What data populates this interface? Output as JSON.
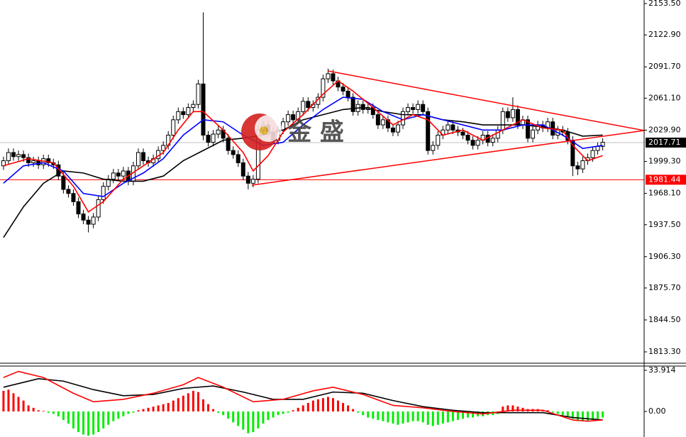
{
  "chart_data": [
    {
      "type": "candlestick",
      "watermark": "金 盛",
      "xlim": [
        -0.7,
        128.3
      ],
      "ylim": [
        1802.2,
        2157.0
      ],
      "yticks": [
        {
          "value": 2153.5,
          "label": "2153.50"
        },
        {
          "value": 2122.9,
          "label": "2122.90"
        },
        {
          "value": 2091.7,
          "label": "2091.70"
        },
        {
          "value": 2061.1,
          "label": "2061.10"
        },
        {
          "value": 2029.9,
          "label": "2029.90"
        },
        {
          "value": 1999.3,
          "label": "1999.30"
        },
        {
          "value": 1968.1,
          "label": "1968.10"
        },
        {
          "value": 1937.5,
          "label": "1937.50"
        },
        {
          "value": 1906.3,
          "label": "1906.30"
        },
        {
          "value": 1875.7,
          "label": "1875.70"
        },
        {
          "value": 1844.5,
          "label": "1844.50"
        },
        {
          "value": 1813.3,
          "label": "1813.30"
        }
      ],
      "up_color": "#ffffff",
      "down_color": "#000000",
      "wick_color": "#000000",
      "candles": [
        [
          1995,
          2004,
          1991,
          2000
        ],
        [
          2000,
          2012,
          1996,
          2008
        ],
        [
          2008,
          2012,
          2000,
          2004
        ],
        [
          2004,
          2010,
          2000,
          2006
        ],
        [
          2006,
          2010,
          1999,
          2003
        ],
        [
          2003,
          2007,
          1994,
          1998
        ],
        [
          1998,
          2004,
          1994,
          2000
        ],
        [
          2000,
          2004,
          1992,
          1996
        ],
        [
          1996,
          2006,
          1992,
          2002
        ],
        [
          2002,
          2006,
          1994,
          1998
        ],
        [
          1998,
          2002,
          1992,
          1996
        ],
        [
          1996,
          2000,
          1981,
          1985
        ],
        [
          1985,
          1989,
          1968,
          1972
        ],
        [
          1972,
          1976,
          1964,
          1968
        ],
        [
          1968,
          1972,
          1956,
          1960
        ],
        [
          1960,
          1964,
          1944,
          1948
        ],
        [
          1948,
          1952,
          1938,
          1942
        ],
        [
          1942,
          1946,
          1930,
          1938
        ],
        [
          1938,
          1949,
          1934,
          1945
        ],
        [
          1945,
          1966,
          1941,
          1962
        ],
        [
          1962,
          1979,
          1958,
          1975
        ],
        [
          1975,
          1986,
          1971,
          1982
        ],
        [
          1982,
          1992,
          1978,
          1988
        ],
        [
          1988,
          1992,
          1981,
          1985
        ],
        [
          1985,
          1994,
          1981,
          1990
        ],
        [
          1990,
          1994,
          1976,
          1980
        ],
        [
          1980,
          1999,
          1976,
          1995
        ],
        [
          1995,
          2012,
          1991,
          2008
        ],
        [
          2008,
          2012,
          1996,
          2000
        ],
        [
          2000,
          2004,
          1994,
          1998
        ],
        [
          1998,
          2006,
          1994,
          2002
        ],
        [
          2002,
          2014,
          1998,
          2010
        ],
        [
          2010,
          2019,
          2006,
          2015
        ],
        [
          2015,
          2029,
          2011,
          2025
        ],
        [
          2025,
          2044,
          2021,
          2040
        ],
        [
          2040,
          2052,
          2036,
          2048
        ],
        [
          2048,
          2052,
          2041,
          2045
        ],
        [
          2045,
          2056,
          2041,
          2052
        ],
        [
          2052,
          2059,
          2048,
          2055
        ],
        [
          2055,
          2079,
          2051,
          2075
        ],
        [
          2075,
          2145,
          2020,
          2025
        ],
        [
          2025,
          2029,
          2014,
          2018
        ],
        [
          2018,
          2030,
          2014,
          2026
        ],
        [
          2026,
          2034,
          2022,
          2030
        ],
        [
          2030,
          2034,
          2018,
          2022
        ],
        [
          2022,
          2026,
          2006,
          2010
        ],
        [
          2010,
          2014,
          2002,
          2006
        ],
        [
          2006,
          2010,
          1994,
          1998
        ],
        [
          1998,
          2002,
          1981,
          1985
        ],
        [
          1985,
          1989,
          1972,
          1978
        ],
        [
          1978,
          1986,
          1974,
          1982
        ],
        [
          1982,
          2034,
          1978,
          2030
        ],
        [
          2030,
          2039,
          2026,
          2035
        ],
        [
          2035,
          2039,
          2024,
          2028
        ],
        [
          2028,
          2032,
          2016,
          2020
        ],
        [
          2020,
          2034,
          2016,
          2030
        ],
        [
          2030,
          2042,
          2026,
          2038
        ],
        [
          2038,
          2049,
          2034,
          2045
        ],
        [
          2045,
          2049,
          2036,
          2040
        ],
        [
          2040,
          2052,
          2036,
          2048
        ],
        [
          2048,
          2062,
          2044,
          2058
        ],
        [
          2058,
          2062,
          2048,
          2052
        ],
        [
          2052,
          2059,
          2048,
          2055
        ],
        [
          2055,
          2066,
          2051,
          2062
        ],
        [
          2062,
          2084,
          2058,
          2080
        ],
        [
          2080,
          2090,
          2076,
          2085
        ],
        [
          2085,
          2089,
          2074,
          2078
        ],
        [
          2078,
          2082,
          2068,
          2072
        ],
        [
          2072,
          2076,
          2064,
          2068
        ],
        [
          2068,
          2072,
          2058,
          2062
        ],
        [
          2062,
          2066,
          2044,
          2048
        ],
        [
          2048,
          2059,
          2044,
          2055
        ],
        [
          2055,
          2059,
          2046,
          2050
        ],
        [
          2050,
          2056,
          2046,
          2052
        ],
        [
          2052,
          2056,
          2041,
          2045
        ],
        [
          2045,
          2049,
          2031,
          2035
        ],
        [
          2035,
          2044,
          2031,
          2040
        ],
        [
          2040,
          2044,
          2028,
          2032
        ],
        [
          2032,
          2036,
          2024,
          2028
        ],
        [
          2028,
          2039,
          2024,
          2035
        ],
        [
          2035,
          2052,
          2031,
          2048
        ],
        [
          2048,
          2056,
          2044,
          2052
        ],
        [
          2052,
          2056,
          2046,
          2050
        ],
        [
          2050,
          2059,
          2046,
          2055
        ],
        [
          2055,
          2059,
          2044,
          2048
        ],
        [
          2048,
          2052,
          2006,
          2010
        ],
        [
          2010,
          2019,
          2006,
          2015
        ],
        [
          2015,
          2029,
          2011,
          2025
        ],
        [
          2025,
          2034,
          2021,
          2030
        ],
        [
          2030,
          2039,
          2026,
          2035
        ],
        [
          2035,
          2039,
          2026,
          2030
        ],
        [
          2030,
          2034,
          2024,
          2028
        ],
        [
          2028,
          2032,
          2021,
          2025
        ],
        [
          2025,
          2029,
          2016,
          2020
        ],
        [
          2020,
          2024,
          2011,
          2015
        ],
        [
          2015,
          2024,
          2011,
          2020
        ],
        [
          2020,
          2029,
          2016,
          2025
        ],
        [
          2025,
          2029,
          2014,
          2018
        ],
        [
          2018,
          2026,
          2014,
          2022
        ],
        [
          2022,
          2034,
          2018,
          2030
        ],
        [
          2030,
          2052,
          2026,
          2048
        ],
        [
          2048,
          2052,
          2038,
          2042
        ],
        [
          2042,
          2062,
          2038,
          2050
        ],
        [
          2050,
          2054,
          2031,
          2035
        ],
        [
          2035,
          2044,
          2031,
          2040
        ],
        [
          2040,
          2044,
          2018,
          2022
        ],
        [
          2022,
          2034,
          2018,
          2030
        ],
        [
          2030,
          2039,
          2026,
          2035
        ],
        [
          2035,
          2039,
          2028,
          2032
        ],
        [
          2032,
          2042,
          2028,
          2038
        ],
        [
          2038,
          2042,
          2021,
          2025
        ],
        [
          2025,
          2034,
          2021,
          2030
        ],
        [
          2030,
          2034,
          2024,
          2028
        ],
        [
          2028,
          2032,
          2016,
          2020
        ],
        [
          2020,
          2024,
          1985,
          1995
        ],
        [
          1995,
          1999,
          1986,
          1992
        ],
        [
          1992,
          2004,
          1988,
          2000
        ],
        [
          2000,
          2007,
          1996,
          2003
        ],
        [
          2003,
          2014,
          1999,
          2010
        ],
        [
          2010,
          2018,
          2006,
          2014
        ],
        [
          2014,
          2022,
          2010,
          2018
        ]
      ],
      "series": [
        {
          "color": "#000000",
          "x": [
            0,
            4,
            8,
            12,
            16,
            20,
            24,
            28,
            32,
            36,
            40,
            44,
            48,
            52,
            56,
            60,
            64,
            68,
            72,
            76,
            80,
            84,
            88,
            92,
            96,
            100,
            104,
            108,
            112,
            116,
            120
          ],
          "values": [
            1925,
            1955,
            1978,
            1990,
            1988,
            1982,
            1980,
            1980,
            1985,
            2000,
            2010,
            2020,
            2022,
            2025,
            2030,
            2040,
            2045,
            2050,
            2052,
            2048,
            2045,
            2045,
            2040,
            2038,
            2035,
            2035,
            2035,
            2033,
            2030,
            2024,
            2025
          ]
        },
        {
          "color": "#0000ff",
          "x": [
            0,
            4,
            8,
            12,
            16,
            20,
            24,
            28,
            32,
            36,
            40,
            44,
            48,
            52,
            56,
            60,
            64,
            68,
            72,
            76,
            80,
            84,
            88,
            92,
            96,
            100,
            104,
            108,
            112,
            116,
            120
          ],
          "values": [
            1978,
            1995,
            1998,
            1990,
            1968,
            1965,
            1978,
            1988,
            2002,
            2025,
            2040,
            2038,
            2025,
            2015,
            2018,
            2035,
            2050,
            2062,
            2060,
            2048,
            2040,
            2045,
            2040,
            2035,
            2030,
            2030,
            2035,
            2035,
            2025,
            2012,
            2015
          ]
        },
        {
          "color": "#ff0000",
          "x": [
            0,
            5,
            10,
            14,
            17,
            20,
            24,
            28,
            32,
            35,
            38,
            40,
            44,
            48,
            50,
            53,
            56,
            60,
            64,
            67,
            70,
            74,
            78,
            82,
            85,
            88,
            92,
            96,
            100,
            104,
            108,
            112,
            114,
            117,
            120
          ],
          "values": [
            1995,
            2002,
            1998,
            1975,
            1950,
            1960,
            1982,
            1995,
            2008,
            2030,
            2048,
            2048,
            2030,
            2008,
            1990,
            2005,
            2028,
            2045,
            2065,
            2078,
            2068,
            2052,
            2035,
            2045,
            2040,
            2025,
            2030,
            2020,
            2030,
            2040,
            2032,
            2030,
            2015,
            2000,
            2005
          ]
        }
      ],
      "lines": [
        {
          "color": "#ff0000",
          "x": [
            65,
            128.3
          ],
          "y": [
            2087.7,
            2029.5
          ]
        },
        {
          "color": "#ff0000",
          "x": [
            49.7,
            128.3
          ],
          "y": [
            1976.1,
            2029.5
          ]
        }
      ],
      "hlines": [
        {
          "value": 2017.71,
          "color": "#c0c0c0",
          "label_bg": "#000000"
        },
        {
          "value": 1981.44,
          "color": "#ff0000",
          "label_bg": "#ff0000"
        }
      ]
    },
    {
      "type": "macd",
      "xlim": [
        -0.7,
        128.3
      ],
      "ylim": [
        -21.05,
        37.42
      ],
      "yticks": [
        33.914,
        {
          "value": 0,
          "label": "0.00"
        }
      ],
      "positive_color": "#ff0000",
      "negative_color": "#00ee00",
      "histogram": [
        17,
        18,
        15,
        12,
        9,
        5,
        3,
        1,
        0.5,
        -1,
        -2,
        -4,
        -7,
        -10,
        -14,
        -17,
        -19,
        -20,
        -19,
        -17,
        -14,
        -11,
        -8,
        -6,
        -4,
        -2,
        -1,
        1,
        2,
        3,
        4,
        5,
        6,
        7,
        9,
        11,
        13,
        15,
        17,
        16,
        10,
        6,
        2,
        -1,
        -3,
        -6,
        -9,
        -12,
        -15,
        -18,
        -17,
        -14,
        -10,
        -7,
        -5,
        -3,
        -2,
        -1,
        1,
        3,
        5,
        7,
        9,
        10,
        11,
        12,
        11,
        9,
        7,
        5,
        2,
        -1,
        -3,
        -5,
        -6,
        -7,
        -8,
        -9,
        -10,
        -11,
        -10,
        -9,
        -8,
        -8,
        -9,
        -11,
        -12,
        -11,
        -10,
        -9,
        -8,
        -7,
        -6,
        -5,
        -5,
        -4,
        -4,
        -3,
        -3,
        -2,
        4,
        5,
        5,
        4,
        3,
        2,
        2,
        2,
        1,
        1,
        -1,
        -2,
        -3,
        -4,
        -6,
        -8,
        -8,
        -8,
        -7,
        -6,
        -5
      ],
      "series": [
        {
          "color": "#000000",
          "x": [
            0,
            7,
            12,
            18,
            24,
            30,
            36,
            42,
            48,
            54,
            60,
            66,
            72,
            78,
            84,
            90,
            96,
            102,
            108,
            114,
            120
          ],
          "values": [
            20,
            27,
            25,
            18,
            13,
            14,
            19,
            21,
            16,
            10,
            10,
            16,
            15,
            9,
            4,
            1,
            -1,
            -1,
            -1,
            -5,
            -7
          ]
        },
        {
          "color": "#ff0000",
          "x": [
            0,
            3,
            8,
            14,
            18,
            24,
            30,
            36,
            39,
            44,
            50,
            56,
            62,
            66,
            72,
            78,
            84,
            90,
            96,
            102,
            108,
            114,
            117,
            120
          ],
          "values": [
            28,
            33,
            28,
            15,
            8,
            10,
            15,
            22,
            28,
            20,
            8,
            10,
            17,
            20,
            14,
            5,
            3,
            0,
            -2,
            1,
            1,
            -7,
            -8,
            -7
          ]
        }
      ]
    }
  ]
}
